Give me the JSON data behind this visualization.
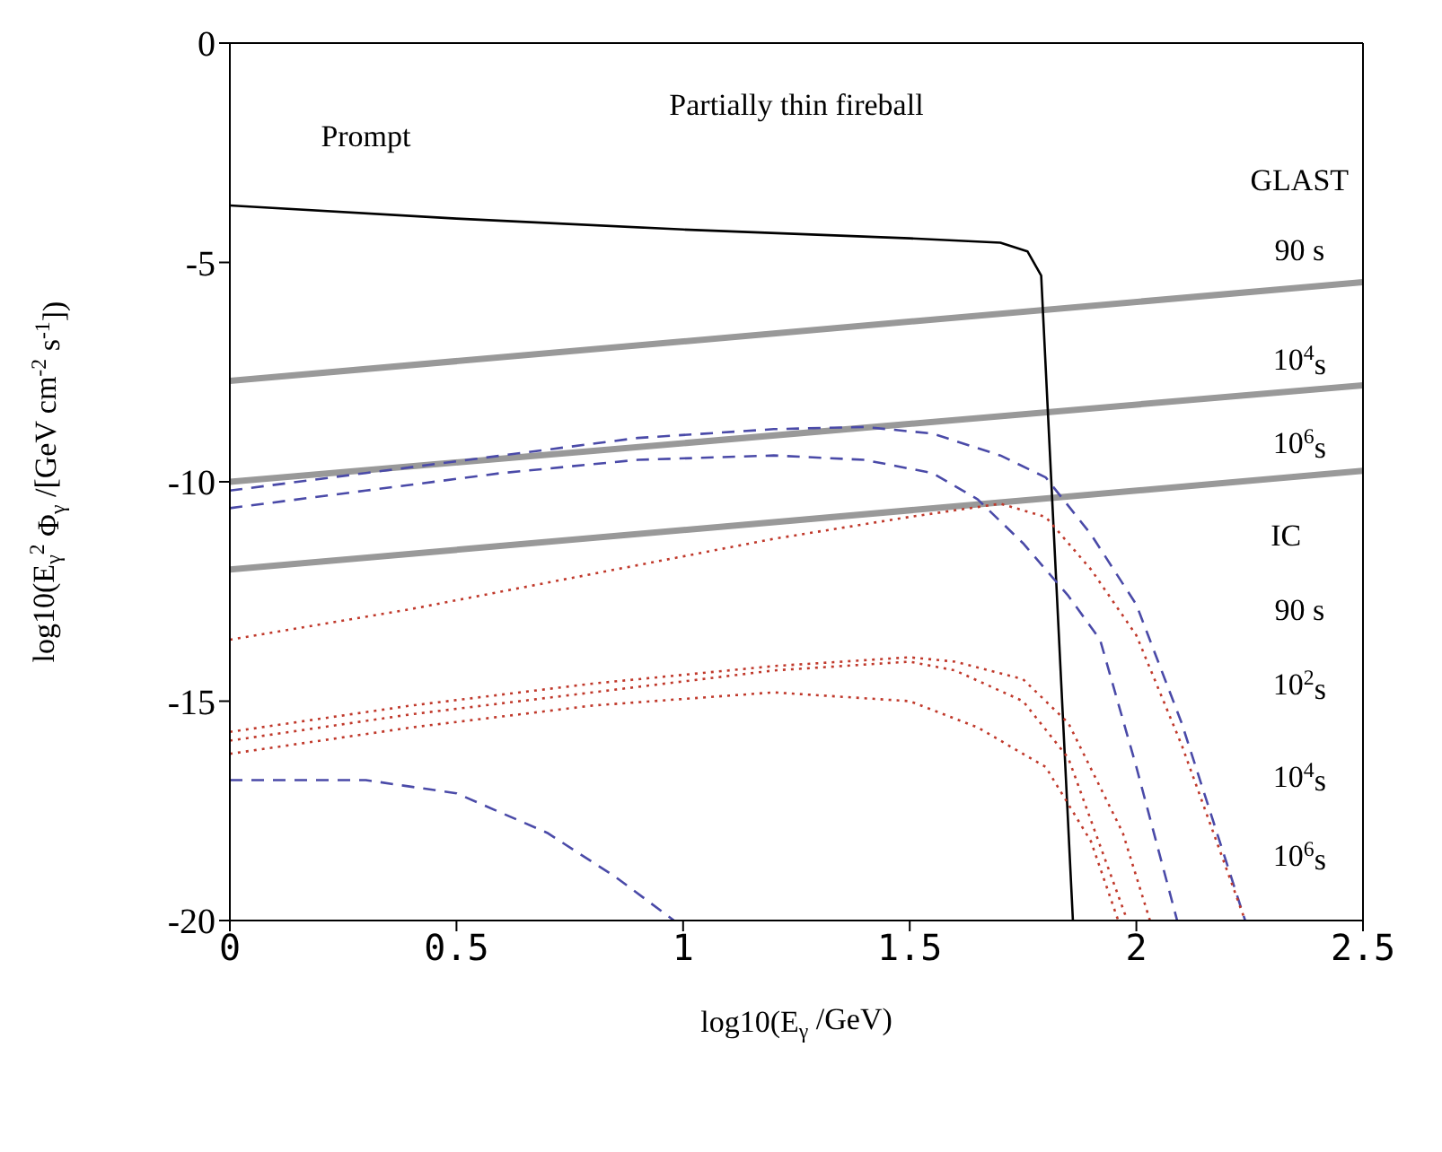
{
  "chart_data": {
    "type": "line",
    "title": "Partially thin fireball",
    "xlabel": "log10(E$_{γ}$ /GeV)",
    "ylabel": "log10(E$_{γ}$$^{2}$ Φ$_{γ}$ /[GeV cm$^{-2}$ s$^{-1}$])",
    "xlim": [
      0,
      2.5
    ],
    "xticks": [
      0,
      0.5,
      1,
      1.5,
      2,
      2.5
    ],
    "ylim": [
      -20,
      0
    ],
    "yticks": [
      0,
      -5,
      -10,
      -15,
      -20
    ],
    "grid": false,
    "legend": false,
    "marker": "none",
    "series": [
      {
        "color": "#999999",
        "line_style": "solid",
        "x": [
          0,
          2.5
        ],
        "values": [
          -7.7,
          -5.45
        ]
      },
      {
        "color": "#999999",
        "line_style": "solid",
        "x": [
          0,
          2.5
        ],
        "values": [
          -10,
          -7.8
        ]
      },
      {
        "color": "#999999",
        "line_style": "solid",
        "x": [
          0,
          2.5
        ],
        "values": [
          -12,
          -9.75
        ]
      },
      {
        "color": "#000000",
        "line_style": "solid",
        "x": [
          0,
          0.5,
          1,
          1.5,
          1.7,
          1.76,
          1.79,
          1.86
        ],
        "values": [
          -3.7,
          -4,
          -4.25,
          -4.45,
          -4.55,
          -4.75,
          -5.3,
          -20
        ]
      },
      {
        "color": "#4a4aa8",
        "line_style": "dashed",
        "x": [
          0,
          0.3,
          0.6,
          0.9,
          1.2,
          1.4,
          1.55,
          1.7,
          1.8,
          1.9,
          2.0,
          2.1,
          2.24
        ],
        "values": [
          -10.2,
          -9.8,
          -9.4,
          -9.0,
          -8.8,
          -8.75,
          -8.9,
          -9.4,
          -9.9,
          -11.2,
          -12.8,
          -15.5,
          -20
        ]
      },
      {
        "color": "#4a4aa8",
        "line_style": "dashed",
        "x": [
          0,
          0.3,
          0.6,
          0.9,
          1.2,
          1.4,
          1.55,
          1.65,
          1.75,
          1.85,
          1.92,
          2.0,
          2.09
        ],
        "values": [
          -10.6,
          -10.2,
          -9.8,
          -9.5,
          -9.4,
          -9.5,
          -9.8,
          -10.4,
          -11.4,
          -12.6,
          -13.6,
          -16.5,
          -20
        ]
      },
      {
        "color": "#4a4aa8",
        "line_style": "dashed",
        "x": [
          0,
          0.3,
          0.5,
          0.7,
          0.85,
          0.98
        ],
        "values": [
          -16.8,
          -16.8,
          -17.1,
          -18,
          -19,
          -20
        ]
      },
      {
        "color": "#c0392b",
        "line_style": "dotted",
        "x": [
          0,
          0.4,
          0.8,
          1.2,
          1.5,
          1.7,
          1.8,
          1.9,
          2.0,
          2.1,
          2.24
        ],
        "values": [
          -13.6,
          -12.9,
          -12.1,
          -11.3,
          -10.8,
          -10.5,
          -10.8,
          -12,
          -13.5,
          -16,
          -20
        ]
      },
      {
        "color": "#c0392b",
        "line_style": "dotted",
        "x": [
          0,
          0.4,
          0.8,
          1.2,
          1.5,
          1.6,
          1.75,
          1.85,
          1.97,
          2.03
        ],
        "values": [
          -15.7,
          -15.1,
          -14.6,
          -14.2,
          -14.0,
          -14.1,
          -14.5,
          -15.5,
          -18,
          -20
        ]
      },
      {
        "color": "#c0392b",
        "line_style": "dotted",
        "x": [
          0,
          0.4,
          0.8,
          1.2,
          1.5,
          1.6,
          1.75,
          1.85,
          1.98
        ],
        "values": [
          -15.9,
          -15.3,
          -14.8,
          -14.3,
          -14.1,
          -14.3,
          -15,
          -16.3,
          -20
        ]
      },
      {
        "color": "#c0392b",
        "line_style": "dotted",
        "x": [
          0,
          0.4,
          0.8,
          1.2,
          1.5,
          1.65,
          1.8,
          1.9,
          1.96
        ],
        "values": [
          -16.2,
          -15.6,
          -15.1,
          -14.8,
          -15.0,
          -15.6,
          -16.5,
          -18.2,
          -20
        ]
      }
    ],
    "annotations": [
      "Prompt",
      "GLAST",
      "90  s",
      "10$^{4}$s",
      "10$^{6}$s",
      "IC",
      "90  s",
      "10$^{2}$s",
      "10$^{4}$s",
      "10$^{6}$s"
    ]
  }
}
